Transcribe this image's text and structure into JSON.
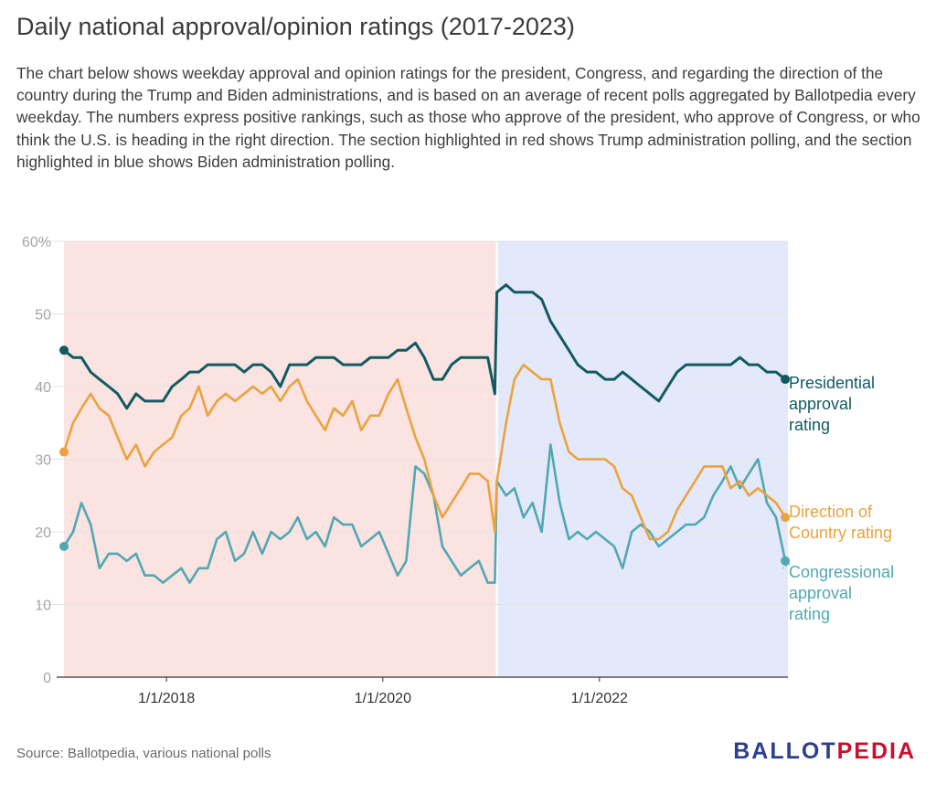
{
  "page": {
    "source": "Source: Ballotpedia, various national polls",
    "logo_part1": "BALLOT",
    "logo_part2": "PEDIA",
    "colors": {
      "presidential": "#125a62",
      "direction": "#eaa33e",
      "congress": "#52a8b2",
      "trump_band": "#fbe3e2",
      "biden_band": "#e3e9fb"
    }
  },
  "chart_data": {
    "type": "line",
    "title": "Daily national approval/opinion ratings (2017-2023)",
    "subtitle": "The chart below shows weekday approval and opinion ratings for the president, Congress, and regarding the direction of the country during the Trump and Biden administrations, and is based on an average of recent polls aggregated by Ballotpedia every weekday. The numbers express positive rankings, such as those who approve of the president, who approve of Congress, or who think the U.S. is heading in the right direction. The section highlighted in red shows Trump administration polling, and the section highlighted in blue shows Biden administration polling.",
    "xlabel": "",
    "ylabel": "",
    "xlim": [
      "2017-01-20",
      "2023-09-29"
    ],
    "ylim": [
      0,
      60
    ],
    "yticks": [
      0,
      10,
      20,
      30,
      40,
      50,
      60
    ],
    "ytick_labels": [
      "0",
      "10",
      "20",
      "30",
      "40",
      "50",
      "60%"
    ],
    "xticks": [
      "2018-01-01",
      "2020-01-01",
      "2022-01-01"
    ],
    "xtick_labels": [
      "1/1/2018",
      "1/1/2020",
      "1/1/2022"
    ],
    "grid": true,
    "legend": "inline labels at right end of each series",
    "regions": [
      {
        "name": "Trump administration",
        "start": "2017-01-20",
        "end": "2021-01-20",
        "color": "#fbe3e2"
      },
      {
        "name": "Biden administration",
        "start": "2021-01-20",
        "end": "2023-09-29",
        "color": "#e3e9fb"
      }
    ],
    "series": [
      {
        "name": "Presidential approval rating",
        "color": "#125a62",
        "points": [
          [
            "2017-01-20",
            45
          ],
          [
            "2017-02-20",
            44
          ],
          [
            "2017-03-20",
            44
          ],
          [
            "2017-04-20",
            42
          ],
          [
            "2017-05-20",
            41
          ],
          [
            "2017-06-20",
            40
          ],
          [
            "2017-07-20",
            39
          ],
          [
            "2017-08-20",
            37
          ],
          [
            "2017-09-20",
            39
          ],
          [
            "2017-10-20",
            38
          ],
          [
            "2017-11-20",
            38
          ],
          [
            "2017-12-20",
            38
          ],
          [
            "2018-01-20",
            40
          ],
          [
            "2018-02-20",
            41
          ],
          [
            "2018-03-20",
            42
          ],
          [
            "2018-04-20",
            42
          ],
          [
            "2018-05-20",
            43
          ],
          [
            "2018-06-20",
            43
          ],
          [
            "2018-07-20",
            43
          ],
          [
            "2018-08-20",
            43
          ],
          [
            "2018-09-20",
            42
          ],
          [
            "2018-10-20",
            43
          ],
          [
            "2018-11-20",
            43
          ],
          [
            "2018-12-20",
            42
          ],
          [
            "2019-01-20",
            40
          ],
          [
            "2019-02-20",
            43
          ],
          [
            "2019-03-20",
            43
          ],
          [
            "2019-04-20",
            43
          ],
          [
            "2019-05-20",
            44
          ],
          [
            "2019-06-20",
            44
          ],
          [
            "2019-07-20",
            44
          ],
          [
            "2019-08-20",
            43
          ],
          [
            "2019-09-20",
            43
          ],
          [
            "2019-10-20",
            43
          ],
          [
            "2019-11-20",
            44
          ],
          [
            "2019-12-20",
            44
          ],
          [
            "2020-01-20",
            44
          ],
          [
            "2020-02-20",
            45
          ],
          [
            "2020-03-20",
            45
          ],
          [
            "2020-04-20",
            46
          ],
          [
            "2020-05-20",
            44
          ],
          [
            "2020-06-20",
            41
          ],
          [
            "2020-07-20",
            41
          ],
          [
            "2020-08-20",
            43
          ],
          [
            "2020-09-20",
            44
          ],
          [
            "2020-10-20",
            44
          ],
          [
            "2020-11-20",
            44
          ],
          [
            "2020-12-20",
            44
          ],
          [
            "2021-01-13",
            39
          ],
          [
            "2021-01-20",
            53
          ],
          [
            "2021-02-20",
            54
          ],
          [
            "2021-03-20",
            53
          ],
          [
            "2021-04-20",
            53
          ],
          [
            "2021-05-20",
            53
          ],
          [
            "2021-06-20",
            52
          ],
          [
            "2021-07-20",
            49
          ],
          [
            "2021-08-20",
            47
          ],
          [
            "2021-09-20",
            45
          ],
          [
            "2021-10-20",
            43
          ],
          [
            "2021-11-20",
            42
          ],
          [
            "2021-12-20",
            42
          ],
          [
            "2022-01-20",
            41
          ],
          [
            "2022-02-20",
            41
          ],
          [
            "2022-03-20",
            42
          ],
          [
            "2022-04-20",
            41
          ],
          [
            "2022-05-20",
            40
          ],
          [
            "2022-06-20",
            39
          ],
          [
            "2022-07-20",
            38
          ],
          [
            "2022-08-20",
            40
          ],
          [
            "2022-09-20",
            42
          ],
          [
            "2022-10-20",
            43
          ],
          [
            "2022-11-20",
            43
          ],
          [
            "2022-12-20",
            43
          ],
          [
            "2023-01-20",
            43
          ],
          [
            "2023-02-20",
            43
          ],
          [
            "2023-03-20",
            43
          ],
          [
            "2023-04-20",
            44
          ],
          [
            "2023-05-20",
            43
          ],
          [
            "2023-06-20",
            43
          ],
          [
            "2023-07-20",
            42
          ],
          [
            "2023-08-20",
            42
          ],
          [
            "2023-09-20",
            41
          ]
        ]
      },
      {
        "name": "Direction of Country rating",
        "color": "#eaa33e",
        "points": [
          [
            "2017-01-20",
            31
          ],
          [
            "2017-02-20",
            35
          ],
          [
            "2017-03-20",
            37
          ],
          [
            "2017-04-20",
            39
          ],
          [
            "2017-05-20",
            37
          ],
          [
            "2017-06-20",
            36
          ],
          [
            "2017-07-20",
            33
          ],
          [
            "2017-08-20",
            30
          ],
          [
            "2017-09-20",
            32
          ],
          [
            "2017-10-20",
            29
          ],
          [
            "2017-11-20",
            31
          ],
          [
            "2017-12-20",
            32
          ],
          [
            "2018-01-20",
            33
          ],
          [
            "2018-02-20",
            36
          ],
          [
            "2018-03-20",
            37
          ],
          [
            "2018-04-20",
            40
          ],
          [
            "2018-05-20",
            36
          ],
          [
            "2018-06-20",
            38
          ],
          [
            "2018-07-20",
            39
          ],
          [
            "2018-08-20",
            38
          ],
          [
            "2018-09-20",
            39
          ],
          [
            "2018-10-20",
            40
          ],
          [
            "2018-11-20",
            39
          ],
          [
            "2018-12-20",
            40
          ],
          [
            "2019-01-20",
            38
          ],
          [
            "2019-02-20",
            40
          ],
          [
            "2019-03-20",
            41
          ],
          [
            "2019-04-20",
            38
          ],
          [
            "2019-05-20",
            36
          ],
          [
            "2019-06-20",
            34
          ],
          [
            "2019-07-20",
            37
          ],
          [
            "2019-08-20",
            36
          ],
          [
            "2019-09-20",
            38
          ],
          [
            "2019-10-20",
            34
          ],
          [
            "2019-11-20",
            36
          ],
          [
            "2019-12-20",
            36
          ],
          [
            "2020-01-20",
            39
          ],
          [
            "2020-02-20",
            41
          ],
          [
            "2020-03-20",
            37
          ],
          [
            "2020-04-20",
            33
          ],
          [
            "2020-05-20",
            30
          ],
          [
            "2020-06-20",
            25
          ],
          [
            "2020-07-20",
            22
          ],
          [
            "2020-08-20",
            24
          ],
          [
            "2020-09-20",
            26
          ],
          [
            "2020-10-20",
            28
          ],
          [
            "2020-11-20",
            28
          ],
          [
            "2020-12-20",
            27
          ],
          [
            "2021-01-13",
            20
          ],
          [
            "2021-01-20",
            27
          ],
          [
            "2021-02-20",
            35
          ],
          [
            "2021-03-20",
            41
          ],
          [
            "2021-04-20",
            43
          ],
          [
            "2021-05-20",
            42
          ],
          [
            "2021-06-20",
            41
          ],
          [
            "2021-07-20",
            41
          ],
          [
            "2021-08-20",
            35
          ],
          [
            "2021-09-20",
            31
          ],
          [
            "2021-10-20",
            30
          ],
          [
            "2021-11-20",
            30
          ],
          [
            "2021-12-20",
            30
          ],
          [
            "2022-01-20",
            30
          ],
          [
            "2022-02-20",
            29
          ],
          [
            "2022-03-20",
            26
          ],
          [
            "2022-04-20",
            25
          ],
          [
            "2022-05-20",
            22
          ],
          [
            "2022-06-20",
            19
          ],
          [
            "2022-07-20",
            19
          ],
          [
            "2022-08-20",
            20
          ],
          [
            "2022-09-20",
            23
          ],
          [
            "2022-10-20",
            25
          ],
          [
            "2022-11-20",
            27
          ],
          [
            "2022-12-20",
            29
          ],
          [
            "2023-01-20",
            29
          ],
          [
            "2023-02-20",
            29
          ],
          [
            "2023-03-20",
            26
          ],
          [
            "2023-04-20",
            27
          ],
          [
            "2023-05-20",
            25
          ],
          [
            "2023-06-20",
            26
          ],
          [
            "2023-07-20",
            25
          ],
          [
            "2023-08-20",
            24
          ],
          [
            "2023-09-20",
            22
          ]
        ]
      },
      {
        "name": "Congressional approval rating",
        "color": "#52a8b2",
        "points": [
          [
            "2017-01-20",
            18
          ],
          [
            "2017-02-20",
            20
          ],
          [
            "2017-03-20",
            24
          ],
          [
            "2017-04-20",
            21
          ],
          [
            "2017-05-20",
            15
          ],
          [
            "2017-06-20",
            17
          ],
          [
            "2017-07-20",
            17
          ],
          [
            "2017-08-20",
            16
          ],
          [
            "2017-09-20",
            17
          ],
          [
            "2017-10-20",
            14
          ],
          [
            "2017-11-20",
            14
          ],
          [
            "2017-12-20",
            13
          ],
          [
            "2018-01-20",
            14
          ],
          [
            "2018-02-20",
            15
          ],
          [
            "2018-03-20",
            13
          ],
          [
            "2018-04-20",
            15
          ],
          [
            "2018-05-20",
            15
          ],
          [
            "2018-06-20",
            19
          ],
          [
            "2018-07-20",
            20
          ],
          [
            "2018-08-20",
            16
          ],
          [
            "2018-09-20",
            17
          ],
          [
            "2018-10-20",
            20
          ],
          [
            "2018-11-20",
            17
          ],
          [
            "2018-12-20",
            20
          ],
          [
            "2019-01-20",
            19
          ],
          [
            "2019-02-20",
            20
          ],
          [
            "2019-03-20",
            22
          ],
          [
            "2019-04-20",
            19
          ],
          [
            "2019-05-20",
            20
          ],
          [
            "2019-06-20",
            18
          ],
          [
            "2019-07-20",
            22
          ],
          [
            "2019-08-20",
            21
          ],
          [
            "2019-09-20",
            21
          ],
          [
            "2019-10-20",
            18
          ],
          [
            "2019-11-20",
            19
          ],
          [
            "2019-12-20",
            20
          ],
          [
            "2020-01-20",
            17
          ],
          [
            "2020-02-20",
            14
          ],
          [
            "2020-03-20",
            16
          ],
          [
            "2020-04-20",
            29
          ],
          [
            "2020-05-20",
            28
          ],
          [
            "2020-06-20",
            25
          ],
          [
            "2020-07-20",
            18
          ],
          [
            "2020-08-20",
            16
          ],
          [
            "2020-09-20",
            14
          ],
          [
            "2020-10-20",
            15
          ],
          [
            "2020-11-20",
            16
          ],
          [
            "2020-12-20",
            13
          ],
          [
            "2021-01-13",
            13
          ],
          [
            "2021-01-20",
            27
          ],
          [
            "2021-02-20",
            25
          ],
          [
            "2021-03-20",
            26
          ],
          [
            "2021-04-20",
            22
          ],
          [
            "2021-05-20",
            24
          ],
          [
            "2021-06-20",
            20
          ],
          [
            "2021-07-20",
            32
          ],
          [
            "2021-08-20",
            24
          ],
          [
            "2021-09-20",
            19
          ],
          [
            "2021-10-20",
            20
          ],
          [
            "2021-11-20",
            19
          ],
          [
            "2021-12-20",
            20
          ],
          [
            "2022-01-20",
            19
          ],
          [
            "2022-02-20",
            18
          ],
          [
            "2022-03-20",
            15
          ],
          [
            "2022-04-20",
            20
          ],
          [
            "2022-05-20",
            21
          ],
          [
            "2022-06-20",
            20
          ],
          [
            "2022-07-20",
            18
          ],
          [
            "2022-08-20",
            19
          ],
          [
            "2022-09-20",
            20
          ],
          [
            "2022-10-20",
            21
          ],
          [
            "2022-11-20",
            21
          ],
          [
            "2022-12-20",
            22
          ],
          [
            "2023-01-20",
            25
          ],
          [
            "2023-02-20",
            27
          ],
          [
            "2023-03-20",
            29
          ],
          [
            "2023-04-20",
            26
          ],
          [
            "2023-05-20",
            28
          ],
          [
            "2023-06-20",
            30
          ],
          [
            "2023-07-20",
            24
          ],
          [
            "2023-08-20",
            22
          ],
          [
            "2023-09-20",
            16
          ]
        ]
      }
    ],
    "labels": [
      {
        "series": 0,
        "lines": [
          "Presidential",
          "approval",
          "rating"
        ]
      },
      {
        "series": 1,
        "lines": [
          "Direction of",
          "Country rating"
        ]
      },
      {
        "series": 2,
        "lines": [
          "Congressional",
          "approval",
          "rating"
        ]
      }
    ]
  }
}
